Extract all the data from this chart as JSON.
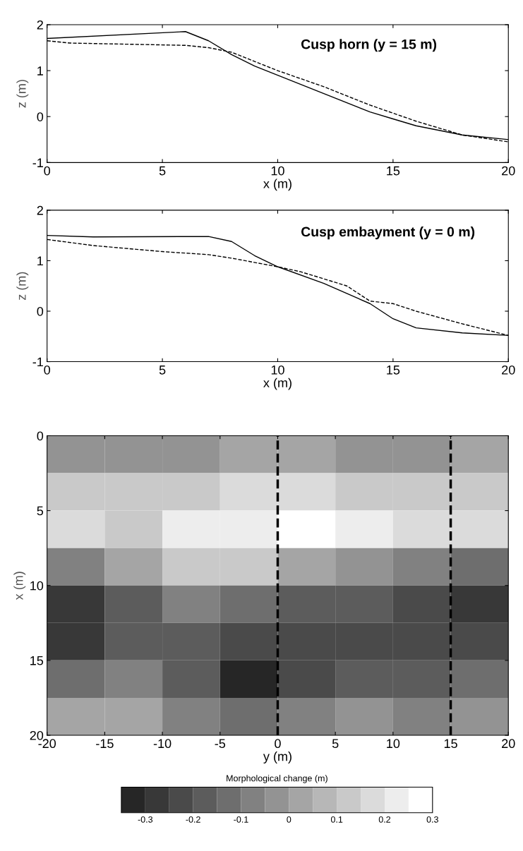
{
  "chart_data": [
    {
      "type": "line",
      "xlabel": "x (m)",
      "ylabel": "z (m)",
      "annotations": [
        "Cusp horn (y = 15 m)"
      ],
      "xlim": [
        0,
        20
      ],
      "ylim": [
        -1,
        2
      ],
      "xticks": [
        0,
        5,
        10,
        15,
        20
      ],
      "yticks": [
        -1,
        0,
        1,
        2
      ],
      "grid": false,
      "legend": false,
      "series": [
        {
          "color": "#000000",
          "line_style": "solid",
          "x": [
            0,
            6,
            7,
            8,
            9,
            10,
            12,
            14,
            15,
            16,
            18,
            20
          ],
          "values": [
            1.7,
            1.85,
            1.65,
            1.35,
            1.1,
            0.9,
            0.5,
            0.1,
            -0.05,
            -0.2,
            -0.4,
            -0.5
          ]
        },
        {
          "color": "#000000",
          "line_style": "dashed",
          "x": [
            0,
            1,
            6,
            7,
            8,
            10,
            12,
            14,
            16,
            18,
            20
          ],
          "values": [
            1.65,
            1.6,
            1.55,
            1.5,
            1.4,
            1.0,
            0.65,
            0.25,
            -0.1,
            -0.4,
            -0.55
          ]
        }
      ]
    },
    {
      "type": "line",
      "xlabel": "x (m)",
      "ylabel": "z (m)",
      "annotations": [
        "Cusp embayment (y = 0 m)"
      ],
      "xlim": [
        0,
        20
      ],
      "ylim": [
        -1,
        2
      ],
      "xticks": [
        0,
        5,
        10,
        15,
        20
      ],
      "yticks": [
        -1,
        0,
        1,
        2
      ],
      "grid": false,
      "legend": false,
      "series": [
        {
          "color": "#000000",
          "line_style": "solid",
          "x": [
            0,
            2,
            7,
            8,
            9,
            10,
            12,
            14,
            15,
            16,
            18,
            20
          ],
          "values": [
            1.5,
            1.47,
            1.48,
            1.38,
            1.1,
            0.88,
            0.55,
            0.15,
            -0.15,
            -0.33,
            -0.43,
            -0.48
          ]
        },
        {
          "color": "#000000",
          "line_style": "dashed",
          "x": [
            0,
            2,
            5,
            7,
            8,
            10,
            11,
            13,
            14,
            15,
            16,
            18,
            20
          ],
          "values": [
            1.42,
            1.3,
            1.18,
            1.12,
            1.05,
            0.88,
            0.78,
            0.5,
            0.2,
            0.15,
            0.0,
            -0.25,
            -0.48
          ]
        }
      ]
    },
    {
      "type": "heatmap",
      "xlabel": "y (m)",
      "ylabel": "x (m)",
      "clabel": "Morphological change (m)",
      "x": [
        -17.5,
        -12.5,
        -7.5,
        -2.5,
        2.5,
        7.5,
        12.5,
        17.5
      ],
      "y": [
        1.25,
        3.75,
        6.25,
        8.75,
        11.25,
        13.75,
        16.25,
        18.75
      ],
      "xlim": [
        -20,
        20
      ],
      "ylim": [
        20,
        0
      ],
      "xticks": [
        -20,
        -15,
        -10,
        -5,
        0,
        5,
        10,
        15,
        20
      ],
      "yticks": [
        0,
        5,
        10,
        15,
        20
      ],
      "clim": [
        -0.35,
        0.3
      ],
      "cticks": [
        -0.3,
        -0.2,
        -0.1,
        0,
        0.1,
        0.2,
        0.3
      ],
      "cells": [
        [
          -0.025,
          -0.025,
          -0.025,
          0.025,
          0.025,
          -0.025,
          -0.025,
          0.025
        ],
        [
          0.125,
          0.125,
          0.125,
          0.175,
          0.175,
          0.125,
          0.125,
          0.125
        ],
        [
          0.175,
          0.125,
          0.225,
          0.225,
          0.275,
          0.225,
          0.175,
          0.175
        ],
        [
          -0.075,
          0.025,
          0.125,
          0.125,
          0.025,
          -0.025,
          -0.075,
          -0.125
        ],
        [
          -0.275,
          -0.175,
          -0.075,
          -0.125,
          -0.175,
          -0.175,
          -0.225,
          -0.275
        ],
        [
          -0.275,
          -0.175,
          -0.175,
          -0.225,
          -0.225,
          -0.225,
          -0.225,
          -0.225
        ],
        [
          -0.125,
          -0.075,
          -0.175,
          -0.325,
          -0.225,
          -0.175,
          -0.175,
          -0.125
        ],
        [
          0.025,
          0.025,
          -0.075,
          -0.125,
          -0.075,
          -0.025,
          -0.075,
          -0.025
        ]
      ],
      "ref_lines": [
        {
          "axis": "x",
          "value": 0,
          "color": "#000000",
          "line_style": "dashed"
        },
        {
          "axis": "x",
          "value": 15,
          "color": "#000000",
          "line_style": "dashed"
        }
      ]
    }
  ]
}
